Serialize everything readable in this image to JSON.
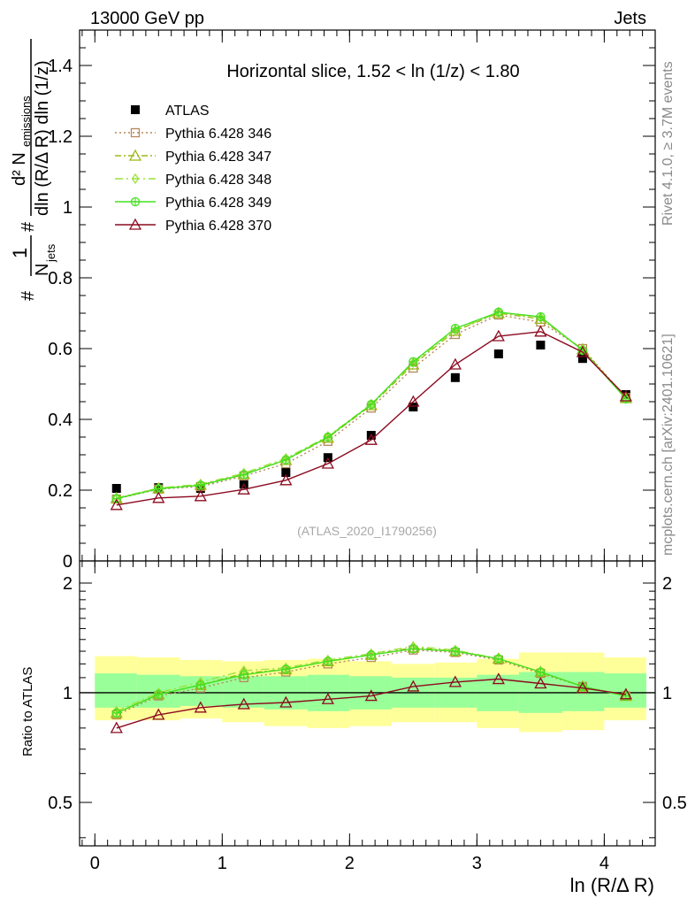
{
  "header": {
    "left": "13000 GeV pp",
    "right": "Jets"
  },
  "side_labels": {
    "rivet": "Rivet 4.1.0, ≥ 3.7M events",
    "mcplots": "mcplots.cern.ch [arXiv:2401.10621]"
  },
  "colors": {
    "atlas": "#000000",
    "p346": "#b5895a",
    "p347": "#9db816",
    "p348": "#9be23c",
    "p349": "#45e020",
    "p370": "#8b0a1f",
    "band_sys": "#ffff99",
    "band_stat": "#99ff99"
  },
  "chart_data": [
    {
      "id": "main",
      "type": "scatter",
      "title": "Horizontal slice, 1.52 < ln (1/z) < 1.80",
      "watermark": "(ATLAS_2020_I1790256)",
      "ylabel": "#  1/N_jets  d²N_emissions / dln (R/Δ R) dln (1/z)",
      "ylabel_parts": {
        "hash1": "#",
        "one": "1",
        "n_jets": "N",
        "jets_sub": "jets",
        "hash2": "#",
        "d2": "d² N",
        "emissions_sub": "emissions",
        "den": "dln (R/Δ R) dln (1/z)"
      },
      "xlim": [
        -0.12,
        4.4
      ],
      "ylim": [
        0,
        1.5
      ],
      "yticks": [
        0,
        0.2,
        0.4,
        0.6,
        0.8,
        1,
        1.2,
        1.4
      ],
      "ytick_labels": [
        "0",
        "0.2",
        "0.4",
        "0.6",
        "0.8",
        "1",
        "1.2",
        "1.4"
      ],
      "x": [
        0.17,
        0.5,
        0.83,
        1.17,
        1.5,
        1.83,
        2.17,
        2.5,
        2.83,
        3.17,
        3.5,
        3.83,
        4.17
      ],
      "series": [
        {
          "name": "ATLAS",
          "marker": "square",
          "color_key": "atlas",
          "values": [
            0.205,
            0.207,
            0.205,
            0.217,
            0.25,
            0.292,
            0.355,
            0.435,
            0.518,
            0.585,
            0.61,
            0.572,
            0.47
          ]
        },
        {
          "name": "Pythia 6.428 346",
          "marker": "open-square",
          "dash": "dotted",
          "color_key": "p346",
          "values": [
            0.175,
            0.203,
            0.21,
            0.24,
            0.275,
            0.338,
            0.432,
            0.545,
            0.64,
            0.695,
            0.675,
            0.6,
            0.462
          ]
        },
        {
          "name": "Pythia 6.428 347",
          "marker": "open-triangle",
          "dash": "dashdot",
          "color_key": "p347",
          "values": [
            0.177,
            0.205,
            0.215,
            0.245,
            0.285,
            0.348,
            0.44,
            0.555,
            0.65,
            0.7,
            0.684,
            0.598,
            0.46
          ]
        },
        {
          "name": "Pythia 6.428 348",
          "marker": "open-diamond",
          "dash": "dashdot2",
          "color_key": "p348",
          "values": [
            0.178,
            0.206,
            0.217,
            0.248,
            0.29,
            0.352,
            0.443,
            0.56,
            0.652,
            0.702,
            0.688,
            0.596,
            0.458
          ]
        },
        {
          "name": "Pythia 6.428 349",
          "marker": "open-crossed-circle",
          "dash": "solid",
          "color_key": "p349",
          "values": [
            0.176,
            0.204,
            0.214,
            0.244,
            0.286,
            0.35,
            0.442,
            0.563,
            0.657,
            0.703,
            0.69,
            0.595,
            0.458
          ]
        },
        {
          "name": "Pythia 6.428 370",
          "marker": "open-triangle",
          "dash": "solid",
          "color_key": "p370",
          "values": [
            0.158,
            0.178,
            0.183,
            0.202,
            0.228,
            0.275,
            0.342,
            0.45,
            0.555,
            0.635,
            0.648,
            0.59,
            0.465
          ]
        }
      ]
    },
    {
      "id": "ratio",
      "type": "line",
      "ylabel": "Ratio to ATLAS",
      "xlabel": "ln (R/Δ R)",
      "xlim": [
        -0.12,
        4.4
      ],
      "ylim": [
        0.38,
        2.3
      ],
      "yticks": [
        0.5,
        1,
        2
      ],
      "ytick_labels": [
        "0.5",
        "1",
        "2"
      ],
      "xticks": [
        0,
        1,
        2,
        3,
        4
      ],
      "xtick_labels": [
        "0",
        "1",
        "2",
        "3",
        "4"
      ],
      "x": [
        0.17,
        0.5,
        0.83,
        1.17,
        1.5,
        1.83,
        2.17,
        2.5,
        2.83,
        3.17,
        3.5,
        3.83,
        4.17
      ],
      "bin_edges": [
        0,
        0.33,
        0.67,
        1.0,
        1.33,
        1.67,
        2.0,
        2.33,
        2.67,
        3.0,
        3.33,
        3.67,
        4.0,
        4.33
      ],
      "band_sys": [
        [
          0.84,
          1.26
        ],
        [
          0.84,
          1.25
        ],
        [
          0.85,
          1.23
        ],
        [
          0.83,
          1.22
        ],
        [
          0.81,
          1.23
        ],
        [
          0.8,
          1.24
        ],
        [
          0.81,
          1.22
        ],
        [
          0.83,
          1.2
        ],
        [
          0.83,
          1.21
        ],
        [
          0.8,
          1.24
        ],
        [
          0.78,
          1.29
        ],
        [
          0.79,
          1.29
        ],
        [
          0.84,
          1.25
        ]
      ],
      "band_stat": [
        [
          0.91,
          1.13
        ],
        [
          0.91,
          1.12
        ],
        [
          0.92,
          1.11
        ],
        [
          0.91,
          1.11
        ],
        [
          0.9,
          1.11
        ],
        [
          0.89,
          1.12
        ],
        [
          0.9,
          1.11
        ],
        [
          0.91,
          1.1
        ],
        [
          0.91,
          1.1
        ],
        [
          0.89,
          1.12
        ],
        [
          0.88,
          1.14
        ],
        [
          0.89,
          1.14
        ],
        [
          0.91,
          1.13
        ]
      ],
      "series": [
        {
          "name": "Pythia 6.428 346",
          "marker": "open-square",
          "dash": "dotted",
          "color_key": "p346",
          "values": [
            0.87,
            0.98,
            1.03,
            1.1,
            1.14,
            1.2,
            1.25,
            1.31,
            1.29,
            1.23,
            1.13,
            1.04,
            0.98
          ]
        },
        {
          "name": "Pythia 6.428 347",
          "marker": "open-triangle",
          "dash": "dashdot",
          "color_key": "p347",
          "values": [
            0.88,
            0.99,
            1.05,
            1.13,
            1.16,
            1.22,
            1.27,
            1.33,
            1.3,
            1.24,
            1.14,
            1.04,
            0.98
          ]
        },
        {
          "name": "Pythia 6.428 348",
          "marker": "open-diamond",
          "dash": "dashdot2",
          "color_key": "p348",
          "values": [
            0.89,
            1.0,
            1.07,
            1.15,
            1.17,
            1.23,
            1.28,
            1.34,
            1.31,
            1.24,
            1.14,
            1.04,
            0.98
          ]
        },
        {
          "name": "Pythia 6.428 349",
          "marker": "open-crossed-circle",
          "dash": "solid",
          "color_key": "p349",
          "values": [
            0.88,
            0.99,
            1.05,
            1.12,
            1.16,
            1.22,
            1.27,
            1.32,
            1.3,
            1.24,
            1.14,
            1.04,
            0.98
          ]
        },
        {
          "name": "Pythia 6.428 370",
          "marker": "open-triangle",
          "dash": "solid",
          "color_key": "p370",
          "values": [
            0.8,
            0.87,
            0.91,
            0.93,
            0.94,
            0.96,
            0.98,
            1.04,
            1.07,
            1.09,
            1.06,
            1.03,
            0.99
          ]
        }
      ]
    }
  ]
}
